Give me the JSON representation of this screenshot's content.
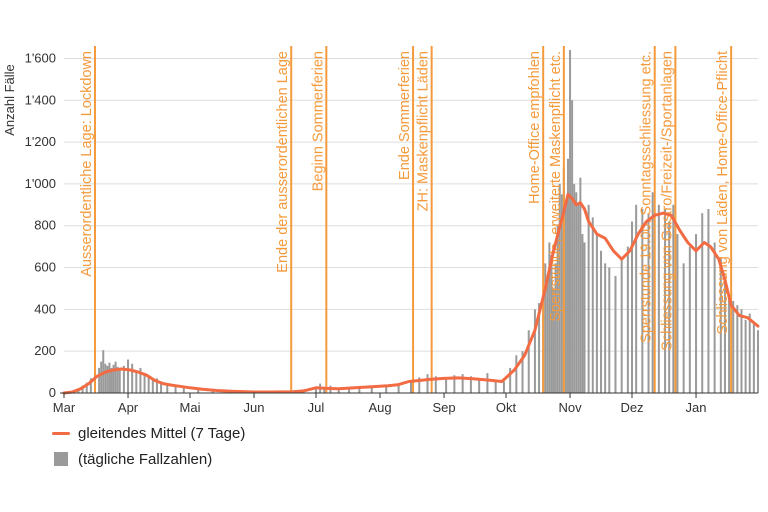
{
  "colors": {
    "line": "#f26b43",
    "bars": "#9a9a9a",
    "events": "#f59a3c",
    "grid": "#dddddd",
    "axis": "#333333"
  },
  "chart_data": {
    "type": "bar",
    "title": "",
    "ylabel": "Anzahl Fälle",
    "xlabel": "",
    "ylim": [
      0,
      1650
    ],
    "yticks": [
      0,
      200,
      400,
      600,
      800,
      1000,
      1200,
      1400,
      1600
    ],
    "ytick_labels": [
      "0",
      "200",
      "400",
      "600",
      "800",
      "1'000",
      "1'200",
      "1'400",
      "1'600"
    ],
    "x_start": "2020-03-01",
    "x_end": "2021-01-31",
    "x_ticks": [
      {
        "date": "2020-03-01",
        "label": "Mar"
      },
      {
        "date": "2020-04-01",
        "label": "Apr"
      },
      {
        "date": "2020-05-01",
        "label": "Mai"
      },
      {
        "date": "2020-06-01",
        "label": "Jun"
      },
      {
        "date": "2020-07-01",
        "label": "Jul"
      },
      {
        "date": "2020-08-01",
        "label": "Aug"
      },
      {
        "date": "2020-09-01",
        "label": "Sep"
      },
      {
        "date": "2020-10-01",
        "label": "Okt"
      },
      {
        "date": "2020-11-01",
        "label": "Nov"
      },
      {
        "date": "2020-12-01",
        "label": "Dez"
      },
      {
        "date": "2021-01-01",
        "label": "Jan"
      }
    ],
    "grid": true,
    "legend_position": "bottom-left",
    "series": [
      {
        "name": "(tägliche Fallzahlen)",
        "kind": "bar",
        "points": [
          [
            "2020-03-04",
            5
          ],
          [
            "2020-03-06",
            10
          ],
          [
            "2020-03-08",
            20
          ],
          [
            "2020-03-10",
            35
          ],
          [
            "2020-03-12",
            50
          ],
          [
            "2020-03-14",
            70
          ],
          [
            "2020-03-16",
            95
          ],
          [
            "2020-03-18",
            120
          ],
          [
            "2020-03-19",
            150
          ],
          [
            "2020-03-20",
            205
          ],
          [
            "2020-03-21",
            140
          ],
          [
            "2020-03-22",
            130
          ],
          [
            "2020-03-23",
            145
          ],
          [
            "2020-03-24",
            120
          ],
          [
            "2020-03-25",
            135
          ],
          [
            "2020-03-26",
            150
          ],
          [
            "2020-03-27",
            125
          ],
          [
            "2020-03-28",
            110
          ],
          [
            "2020-03-30",
            130
          ],
          [
            "2020-04-01",
            160
          ],
          [
            "2020-04-03",
            140
          ],
          [
            "2020-04-05",
            100
          ],
          [
            "2020-04-07",
            120
          ],
          [
            "2020-04-09",
            95
          ],
          [
            "2020-04-11",
            75
          ],
          [
            "2020-04-13",
            60
          ],
          [
            "2020-04-15",
            70
          ],
          [
            "2020-04-17",
            55
          ],
          [
            "2020-04-20",
            45
          ],
          [
            "2020-04-24",
            35
          ],
          [
            "2020-04-28",
            30
          ],
          [
            "2020-05-05",
            20
          ],
          [
            "2020-05-12",
            15
          ],
          [
            "2020-05-20",
            10
          ],
          [
            "2020-06-01",
            6
          ],
          [
            "2020-06-15",
            5
          ],
          [
            "2020-06-25",
            10
          ],
          [
            "2020-07-01",
            20
          ],
          [
            "2020-07-03",
            45
          ],
          [
            "2020-07-05",
            30
          ],
          [
            "2020-07-08",
            35
          ],
          [
            "2020-07-12",
            20
          ],
          [
            "2020-07-17",
            25
          ],
          [
            "2020-07-22",
            30
          ],
          [
            "2020-07-28",
            35
          ],
          [
            "2020-08-04",
            40
          ],
          [
            "2020-08-10",
            45
          ],
          [
            "2020-08-16",
            60
          ],
          [
            "2020-08-20",
            75
          ],
          [
            "2020-08-24",
            90
          ],
          [
            "2020-08-28",
            80
          ],
          [
            "2020-09-02",
            70
          ],
          [
            "2020-09-06",
            85
          ],
          [
            "2020-09-10",
            90
          ],
          [
            "2020-09-14",
            80
          ],
          [
            "2020-09-18",
            70
          ],
          [
            "2020-09-22",
            95
          ],
          [
            "2020-09-26",
            60
          ],
          [
            "2020-09-30",
            55
          ],
          [
            "2020-10-03",
            120
          ],
          [
            "2020-10-06",
            180
          ],
          [
            "2020-10-09",
            200
          ],
          [
            "2020-10-12",
            300
          ],
          [
            "2020-10-15",
            400
          ],
          [
            "2020-10-17",
            430
          ],
          [
            "2020-10-19",
            450
          ],
          [
            "2020-10-20",
            620
          ],
          [
            "2020-10-21",
            540
          ],
          [
            "2020-10-22",
            720
          ],
          [
            "2020-10-23",
            660
          ],
          [
            "2020-10-24",
            500
          ],
          [
            "2020-10-25",
            620
          ],
          [
            "2020-10-26",
            800
          ],
          [
            "2020-10-27",
            1000
          ],
          [
            "2020-10-28",
            950
          ],
          [
            "2020-10-29",
            1080
          ],
          [
            "2020-10-30",
            920
          ],
          [
            "2020-10-31",
            1120
          ],
          [
            "2020-11-01",
            1640
          ],
          [
            "2020-11-02",
            1400
          ],
          [
            "2020-11-03",
            1000
          ],
          [
            "2020-11-04",
            960
          ],
          [
            "2020-11-05",
            900
          ],
          [
            "2020-11-06",
            1030
          ],
          [
            "2020-11-07",
            760
          ],
          [
            "2020-11-08",
            720
          ],
          [
            "2020-11-10",
            900
          ],
          [
            "2020-11-12",
            840
          ],
          [
            "2020-11-14",
            760
          ],
          [
            "2020-11-16",
            680
          ],
          [
            "2020-11-18",
            620
          ],
          [
            "2020-11-20",
            600
          ],
          [
            "2020-11-23",
            560
          ],
          [
            "2020-11-26",
            640
          ],
          [
            "2020-11-29",
            700
          ],
          [
            "2020-12-01",
            820
          ],
          [
            "2020-12-03",
            900
          ],
          [
            "2020-12-06",
            880
          ],
          [
            "2020-12-09",
            860
          ],
          [
            "2020-12-11",
            960
          ],
          [
            "2020-12-14",
            900
          ],
          [
            "2020-12-17",
            880
          ],
          [
            "2020-12-19",
            820
          ],
          [
            "2020-12-21",
            900
          ],
          [
            "2020-12-23",
            760
          ],
          [
            "2020-12-26",
            620
          ],
          [
            "2020-12-29",
            700
          ],
          [
            "2021-01-01",
            760
          ],
          [
            "2021-01-04",
            860
          ],
          [
            "2021-01-07",
            880
          ],
          [
            "2021-01-10",
            720
          ],
          [
            "2021-01-13",
            650
          ],
          [
            "2021-01-15",
            540
          ],
          [
            "2021-01-17",
            450
          ],
          [
            "2021-01-19",
            440
          ],
          [
            "2021-01-21",
            420
          ],
          [
            "2021-01-23",
            400
          ],
          [
            "2021-01-25",
            350
          ],
          [
            "2021-01-27",
            380
          ],
          [
            "2021-01-29",
            340
          ],
          [
            "2021-01-31",
            300
          ]
        ]
      },
      {
        "name": "gleitendes Mittel (7 Tage)",
        "kind": "line",
        "points": [
          [
            "2020-03-01",
            0
          ],
          [
            "2020-03-05",
            5
          ],
          [
            "2020-03-09",
            20
          ],
          [
            "2020-03-13",
            45
          ],
          [
            "2020-03-17",
            80
          ],
          [
            "2020-03-21",
            100
          ],
          [
            "2020-03-25",
            110
          ],
          [
            "2020-03-29",
            115
          ],
          [
            "2020-04-02",
            110
          ],
          [
            "2020-04-06",
            100
          ],
          [
            "2020-04-10",
            85
          ],
          [
            "2020-04-14",
            60
          ],
          [
            "2020-04-18",
            45
          ],
          [
            "2020-04-22",
            38
          ],
          [
            "2020-04-26",
            32
          ],
          [
            "2020-05-01",
            25
          ],
          [
            "2020-05-07",
            18
          ],
          [
            "2020-05-14",
            12
          ],
          [
            "2020-05-21",
            8
          ],
          [
            "2020-06-01",
            5
          ],
          [
            "2020-06-10",
            5
          ],
          [
            "2020-06-20",
            6
          ],
          [
            "2020-06-25",
            10
          ],
          [
            "2020-07-01",
            25
          ],
          [
            "2020-07-06",
            22
          ],
          [
            "2020-07-12",
            20
          ],
          [
            "2020-07-20",
            25
          ],
          [
            "2020-07-28",
            30
          ],
          [
            "2020-08-05",
            35
          ],
          [
            "2020-08-10",
            40
          ],
          [
            "2020-08-15",
            55
          ],
          [
            "2020-08-20",
            60
          ],
          [
            "2020-08-25",
            65
          ],
          [
            "2020-09-01",
            70
          ],
          [
            "2020-09-08",
            72
          ],
          [
            "2020-09-15",
            68
          ],
          [
            "2020-09-22",
            62
          ],
          [
            "2020-09-29",
            55
          ],
          [
            "2020-10-05",
            110
          ],
          [
            "2020-10-10",
            180
          ],
          [
            "2020-10-15",
            300
          ],
          [
            "2020-10-20",
            500
          ],
          [
            "2020-10-24",
            680
          ],
          [
            "2020-10-28",
            830
          ],
          [
            "2020-10-31",
            950
          ],
          [
            "2020-11-02",
            930
          ],
          [
            "2020-11-04",
            900
          ],
          [
            "2020-11-06",
            910
          ],
          [
            "2020-11-08",
            880
          ],
          [
            "2020-11-10",
            820
          ],
          [
            "2020-11-14",
            760
          ],
          [
            "2020-11-18",
            740
          ],
          [
            "2020-11-22",
            680
          ],
          [
            "2020-11-26",
            640
          ],
          [
            "2020-11-30",
            680
          ],
          [
            "2020-12-04",
            760
          ],
          [
            "2020-12-08",
            820
          ],
          [
            "2020-12-12",
            850
          ],
          [
            "2020-12-16",
            860
          ],
          [
            "2020-12-20",
            850
          ],
          [
            "2020-12-24",
            780
          ],
          [
            "2020-12-28",
            720
          ],
          [
            "2021-01-01",
            680
          ],
          [
            "2021-01-05",
            720
          ],
          [
            "2021-01-08",
            700
          ],
          [
            "2021-01-12",
            640
          ],
          [
            "2021-01-15",
            540
          ],
          [
            "2021-01-18",
            420
          ],
          [
            "2021-01-22",
            370
          ],
          [
            "2021-01-26",
            360
          ],
          [
            "2021-01-31",
            320
          ]
        ]
      }
    ],
    "events": [
      {
        "date": "2020-03-16",
        "label": "Ausserordentliche Lage: Lockdown"
      },
      {
        "date": "2020-06-19",
        "label": "Ende der ausserordentlichen Lage"
      },
      {
        "date": "2020-07-06",
        "label": "Beginn Sommerferien"
      },
      {
        "date": "2020-08-17",
        "label": "Ende Sommerferien"
      },
      {
        "date": "2020-08-26",
        "label": "ZH: Maskenpflicht Läden"
      },
      {
        "date": "2020-10-19",
        "label": "Home-Office empfohlen"
      },
      {
        "date": "2020-10-29",
        "label": "Sperrstunde, erweiterte Maskenpflicht etc."
      },
      {
        "date": "2020-12-12",
        "label": "Sperrstunde 19.00, Sonntagsschliessung etc."
      },
      {
        "date": "2020-12-22",
        "label": "Schliessung von Gastro/Freizeit-/Sportanlagen"
      },
      {
        "date": "2021-01-18",
        "label": "Schliessung von Läden, Home-Office-Pflicht"
      }
    ]
  },
  "legend": {
    "line_label": "gleitendes Mittel (7 Tage)",
    "bar_label": "(tägliche Fallzahlen)"
  }
}
